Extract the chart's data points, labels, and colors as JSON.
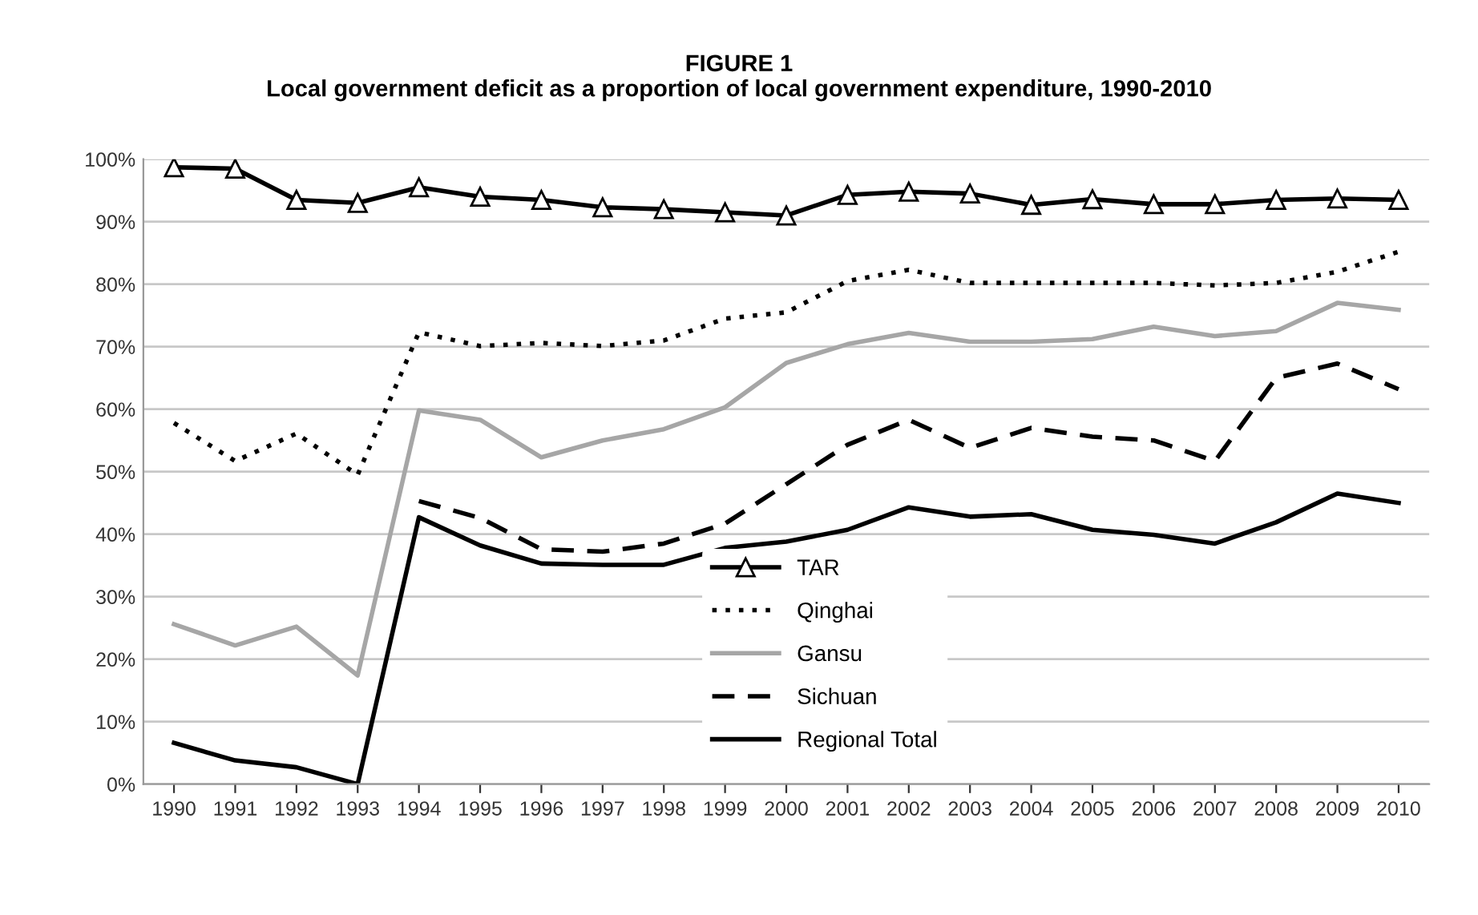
{
  "chart_data": {
    "type": "line",
    "title": "FIGURE 1\nLocal government deficit as a proportion of local government expenditure, 1990-2010",
    "categories": [
      "1990",
      "1991",
      "1992",
      "1993",
      "1994",
      "1995",
      "1996",
      "1997",
      "1998",
      "1999",
      "2000",
      "2001",
      "2002",
      "2003",
      "2004",
      "2005",
      "2006",
      "2007",
      "2008",
      "2009",
      "2010"
    ],
    "series": [
      {
        "name": "TAR",
        "color": "#000000",
        "marker": "triangle",
        "line_style": "solid",
        "values": [
          98.7,
          98.5,
          93.5,
          93,
          95.5,
          94,
          93.5,
          92.3,
          92,
          91.5,
          91,
          94.3,
          94.8,
          94.5,
          92.7,
          93.6,
          92.8,
          92.8,
          93.5,
          93.7,
          93.5
        ]
      },
      {
        "name": "Qinghai",
        "color": "#000000",
        "marker": "none",
        "line_style": "dotted",
        "values": [
          57.8,
          51.7,
          56.1,
          49.5,
          72.3,
          70.1,
          70.6,
          70.1,
          71,
          74.5,
          75.5,
          80.5,
          82.3,
          80.2,
          80.2,
          80.2,
          80.2,
          79.8,
          80.2,
          82,
          85.2
        ]
      },
      {
        "name": "Gansu",
        "color": "#a6a6a6",
        "marker": "none",
        "line_style": "solid",
        "values": [
          25.6,
          22.2,
          25.2,
          17.4,
          59.8,
          58.3,
          52.3,
          55,
          56.8,
          60.3,
          67.4,
          70.4,
          72.2,
          70.8,
          70.8,
          71.2,
          73.2,
          71.7,
          72.5,
          77,
          75.9
        ]
      },
      {
        "name": "Sichuan",
        "color": "#000000",
        "marker": "none",
        "line_style": "dashed",
        "values": [
          null,
          null,
          null,
          null,
          45.3,
          42.6,
          37.6,
          37.2,
          38.5,
          41.7,
          48,
          54.3,
          58.3,
          53.8,
          57,
          55.6,
          55,
          51.7,
          65,
          67.3,
          63.2
        ]
      },
      {
        "name": "Regional Total",
        "color": "#000000",
        "marker": "none",
        "line_style": "solid",
        "values": [
          6.6,
          3.8,
          2.7,
          0,
          42.7,
          38.2,
          35.3,
          35.1,
          35.1,
          37.8,
          38.8,
          40.7,
          44.3,
          42.8,
          43.2,
          40.7,
          39.9,
          38.5,
          41.9,
          46.5,
          45
        ]
      }
    ],
    "ylim": [
      0,
      100
    ],
    "yticks": [
      {
        "value": 0,
        "label": "0%"
      },
      {
        "value": 10,
        "label": "10%"
      },
      {
        "value": 20,
        "label": "20%"
      },
      {
        "value": 30,
        "label": "30%"
      },
      {
        "value": 40,
        "label": "40%"
      },
      {
        "value": 50,
        "label": "50%"
      },
      {
        "value": 60,
        "label": "60%"
      },
      {
        "value": 70,
        "label": "70%"
      },
      {
        "value": 80,
        "label": "80%"
      },
      {
        "value": 90,
        "label": "90%"
      },
      {
        "value": 100,
        "label": "100%"
      }
    ],
    "grid": "y",
    "legend": "bottom"
  }
}
